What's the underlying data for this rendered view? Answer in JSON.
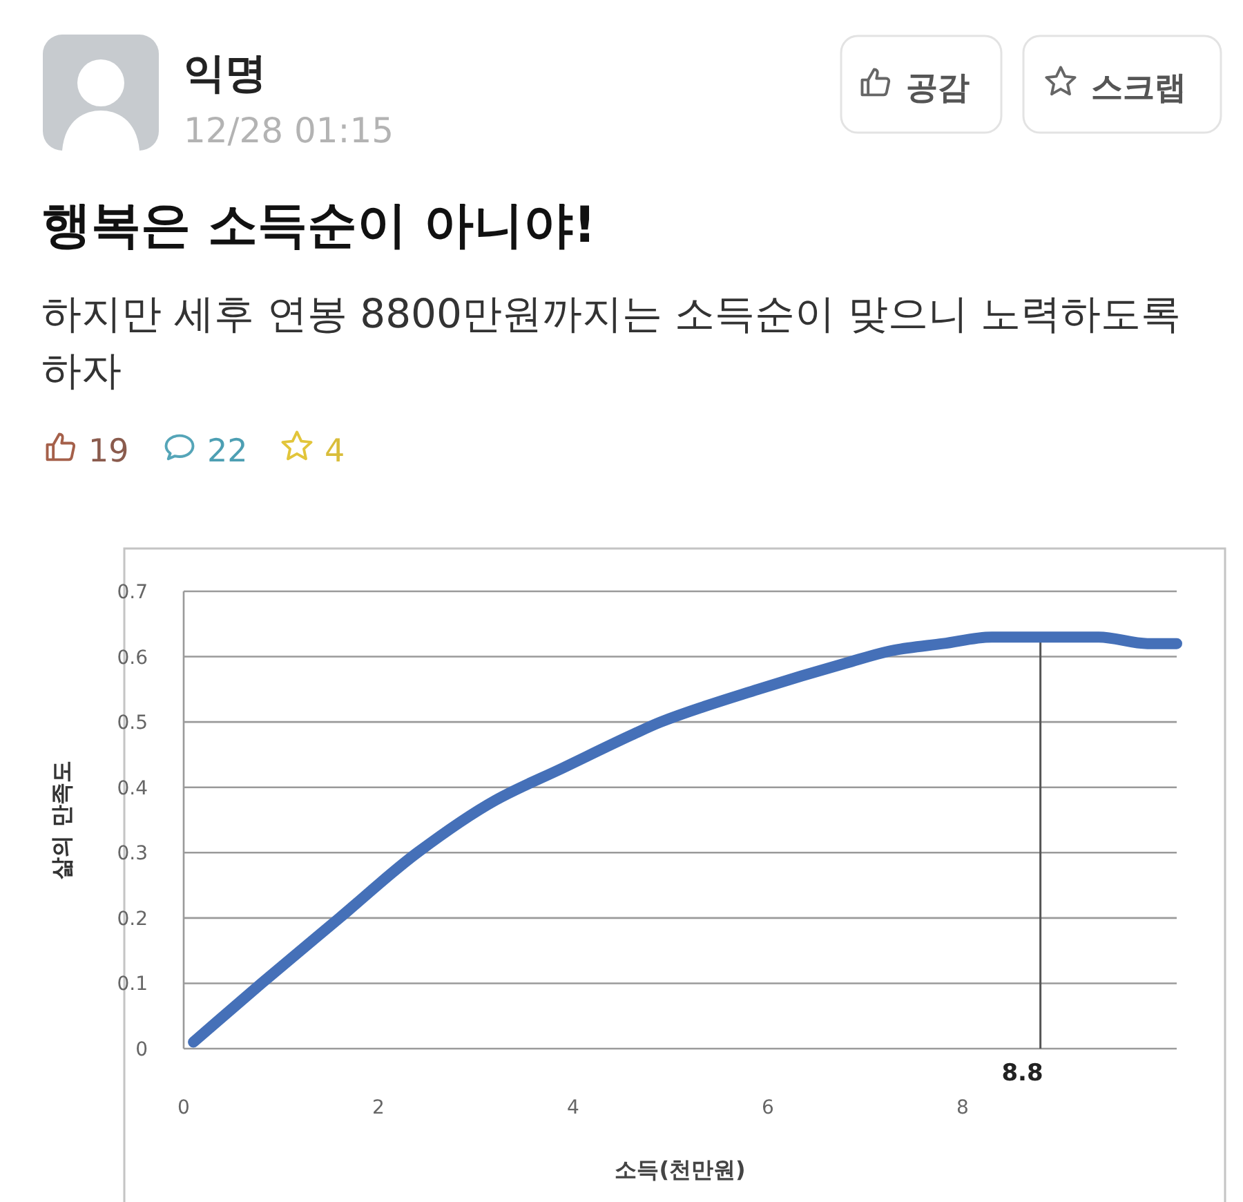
{
  "chart_data": {
    "type": "line",
    "title": "행복은 소득순이 아니야!",
    "subtitle": "하지만 세후 연봉 8800만원까지는 소득순이 맞으니 노력하도록 하자",
    "xlabel": "소득(천만원)",
    "ylabel": "삶의 만족도",
    "annotations": [
      "익명",
      "12/28 01:15",
      "공감",
      "스크랩",
      "19",
      "22",
      "4",
      {
        "text": "8.8",
        "x": 8.8,
        "y": 0.63
      }
    ],
    "x": [
      0.1,
      0.8,
      1.6,
      2.4,
      3.2,
      3.9,
      4.6,
      4.9,
      5.9,
      6.8,
      7.3,
      7.8,
      8.3,
      8.8,
      9.4,
      9.9,
      10.2
    ],
    "series": [
      {
        "color": "#4570b8",
        "values": [
          0.01,
          0.1,
          0.2,
          0.3,
          0.38,
          0.43,
          0.48,
          0.5,
          0.55,
          0.59,
          0.61,
          0.62,
          0.63,
          0.63,
          0.63,
          0.62,
          0.62
        ]
      }
    ],
    "xlim": [
      0,
      10.2
    ],
    "xticks": [
      0,
      2,
      4,
      6,
      8
    ],
    "ylim": [
      0,
      0.7
    ],
    "yticks": [
      0,
      0.1,
      0.2,
      0.3,
      0.4,
      0.5,
      0.6,
      0.7
    ],
    "grid": "y"
  }
}
